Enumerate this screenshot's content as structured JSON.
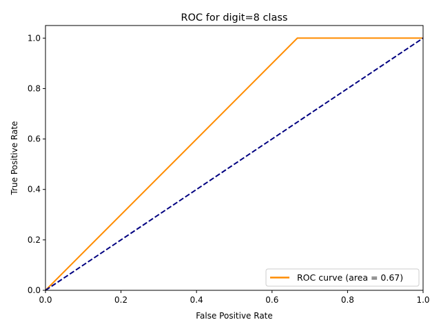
{
  "chart_data": {
    "type": "line",
    "title": "ROC for digit=8 class",
    "xlabel": "False Positive Rate",
    "ylabel": "True Positive Rate",
    "xlim": [
      0.0,
      1.0
    ],
    "ylim": [
      0.0,
      1.05
    ],
    "x_ticks": [
      0.0,
      0.2,
      0.4,
      0.6,
      0.8,
      1.0
    ],
    "y_ticks": [
      0.0,
      0.2,
      0.4,
      0.6,
      0.8,
      1.0
    ],
    "x_tick_labels": [
      "0.0",
      "0.2",
      "0.4",
      "0.6",
      "0.8",
      "1.0"
    ],
    "y_tick_labels": [
      "0.0",
      "0.2",
      "0.4",
      "0.6",
      "0.8",
      "1.0"
    ],
    "grid": false,
    "legend_position": "lower-right",
    "series": [
      {
        "name": "ROC curve (area = 0.67)",
        "color": "#ff8c00",
        "style": "solid",
        "x": [
          0.0,
          0.667,
          1.0
        ],
        "y": [
          0.0,
          1.0,
          1.0
        ]
      },
      {
        "color": "#000080",
        "style": "dashed",
        "x": [
          0.0,
          1.0
        ],
        "y": [
          0.0,
          1.0
        ]
      }
    ]
  }
}
